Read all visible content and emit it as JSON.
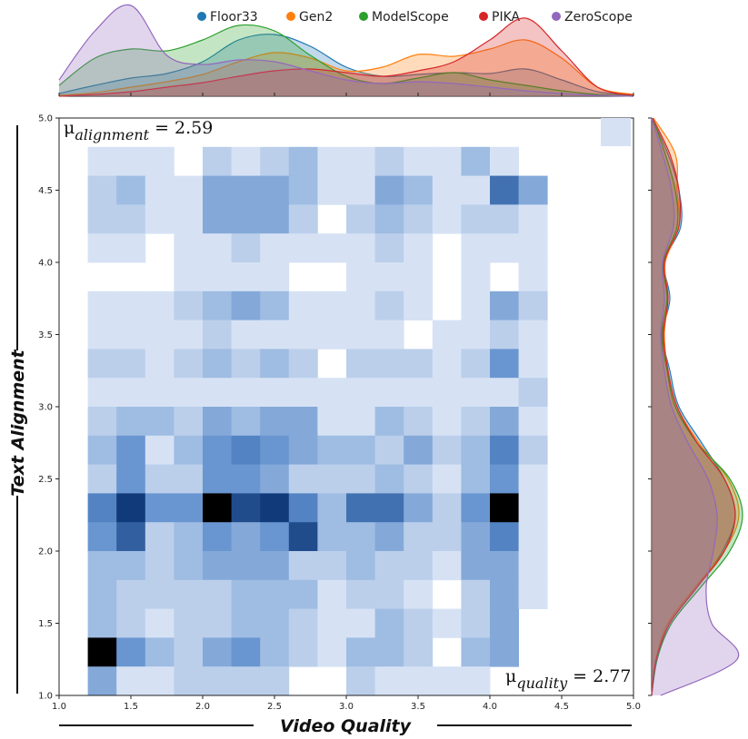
{
  "chart_data": {
    "type": "heatmap",
    "title": "",
    "xlabel": "Video Quality",
    "ylabel": "Text Alignment",
    "xlim": [
      1.0,
      5.0
    ],
    "ylim": [
      1.0,
      5.0
    ],
    "x_ticks": [
      "1.0",
      "1.5",
      "2.0",
      "2.5",
      "3.0",
      "3.5",
      "4.0",
      "4.5",
      "5.0"
    ],
    "y_ticks": [
      "1.0",
      "1.5",
      "2.0",
      "2.5",
      "3.0",
      "3.5",
      "4.0",
      "4.5",
      "5.0"
    ],
    "bin_size": 0.2,
    "x_bin_start": 1.2,
    "y_bin_start": 1.0,
    "color_low": "#d6e2f4",
    "color_mid": "#5b8ccc",
    "color_high": "#002868",
    "color_peak": "#000000",
    "counts_top_to_bottom": [
      [
        1,
        1,
        1,
        0,
        2,
        1,
        2,
        3,
        1,
        1,
        2,
        1,
        1,
        3,
        1,
        0
      ],
      [
        2,
        3,
        1,
        1,
        4,
        4,
        4,
        3,
        1,
        1,
        4,
        3,
        1,
        1,
        7,
        4
      ],
      [
        2,
        2,
        1,
        1,
        4,
        4,
        4,
        2,
        0,
        2,
        3,
        2,
        1,
        2,
        2,
        1
      ],
      [
        1,
        1,
        0,
        1,
        1,
        2,
        1,
        1,
        1,
        1,
        2,
        1,
        0,
        1,
        1,
        1
      ],
      [
        0,
        0,
        0,
        1,
        1,
        1,
        1,
        0,
        0,
        1,
        1,
        1,
        0,
        1,
        0,
        1
      ],
      [
        1,
        1,
        1,
        2,
        3,
        4,
        3,
        1,
        1,
        1,
        2,
        1,
        0,
        1,
        4,
        2
      ],
      [
        1,
        1,
        1,
        1,
        2,
        1,
        1,
        1,
        1,
        1,
        1,
        0,
        1,
        1,
        2,
        1
      ],
      [
        2,
        2,
        1,
        2,
        3,
        2,
        3,
        2,
        0,
        2,
        2,
        2,
        1,
        2,
        5,
        1
      ],
      [
        1,
        1,
        1,
        1,
        1,
        1,
        1,
        1,
        1,
        1,
        1,
        1,
        1,
        1,
        1,
        2
      ],
      [
        2,
        3,
        3,
        2,
        4,
        3,
        4,
        4,
        1,
        1,
        3,
        2,
        1,
        2,
        4,
        1
      ],
      [
        3,
        5,
        1,
        3,
        5,
        6,
        5,
        4,
        3,
        3,
        2,
        4,
        2,
        3,
        6,
        2
      ],
      [
        2,
        5,
        2,
        2,
        5,
        5,
        4,
        2,
        2,
        2,
        3,
        2,
        1,
        3,
        5,
        1
      ],
      [
        6,
        10,
        5,
        5,
        12,
        9,
        10,
        6,
        3,
        7,
        7,
        4,
        2,
        5,
        12,
        1
      ],
      [
        5,
        8,
        2,
        3,
        5,
        4,
        5,
        9,
        3,
        3,
        4,
        2,
        2,
        4,
        6,
        1
      ],
      [
        3,
        3,
        2,
        3,
        4,
        4,
        4,
        2,
        2,
        3,
        2,
        2,
        1,
        4,
        4,
        1
      ],
      [
        3,
        2,
        2,
        2,
        2,
        3,
        3,
        3,
        1,
        2,
        2,
        1,
        0,
        2,
        4,
        1
      ],
      [
        3,
        2,
        1,
        2,
        2,
        3,
        3,
        2,
        1,
        1,
        3,
        2,
        1,
        2,
        4,
        0
      ],
      [
        12,
        5,
        3,
        2,
        4,
        5,
        3,
        2,
        1,
        3,
        3,
        2,
        0,
        3,
        4,
        0
      ],
      [
        4,
        1,
        1,
        2,
        2,
        2,
        2,
        0,
        0,
        2,
        1,
        1,
        1,
        1,
        0,
        0
      ]
    ],
    "mu_alignment": {
      "symbol": "μ",
      "subscript": "alignment",
      "value": "= 2.59"
    },
    "mu_quality": {
      "symbol": "μ",
      "subscript": "quality",
      "value": "= 2.77"
    },
    "legend": [
      {
        "name": "Floor33",
        "color": "#1f77b4"
      },
      {
        "name": "Gen2",
        "color": "#ff7f0e"
      },
      {
        "name": "ModelScope",
        "color": "#2ca02c"
      },
      {
        "name": "PIKA",
        "color": "#d62728"
      },
      {
        "name": "ZeroScope",
        "color": "#9467bd"
      }
    ],
    "legend_position": "top-right",
    "marginal_quality_density": [
      {
        "name": "Floor33",
        "x": [
          1.0,
          1.25,
          1.5,
          1.75,
          2.0,
          2.25,
          2.5,
          2.75,
          3.0,
          3.25,
          3.5,
          3.75,
          4.0,
          4.25,
          4.5,
          4.75,
          5.0
        ],
        "y": [
          0.03,
          0.12,
          0.2,
          0.25,
          0.38,
          0.62,
          0.68,
          0.55,
          0.32,
          0.22,
          0.24,
          0.26,
          0.25,
          0.3,
          0.18,
          0.05,
          0.01
        ]
      },
      {
        "name": "Gen2",
        "x": [
          1.0,
          1.25,
          1.5,
          1.75,
          2.0,
          2.25,
          2.5,
          2.75,
          3.0,
          3.25,
          3.5,
          3.75,
          4.0,
          4.25,
          4.5,
          4.75,
          5.0
        ],
        "y": [
          0.01,
          0.04,
          0.1,
          0.16,
          0.24,
          0.38,
          0.48,
          0.42,
          0.28,
          0.32,
          0.46,
          0.44,
          0.52,
          0.62,
          0.42,
          0.1,
          0.02
        ]
      },
      {
        "name": "ModelScope",
        "x": [
          1.0,
          1.25,
          1.5,
          1.75,
          2.0,
          2.25,
          2.5,
          2.75,
          3.0,
          3.25,
          3.5,
          3.75,
          4.0,
          4.25,
          4.5,
          4.75,
          5.0
        ],
        "y": [
          0.12,
          0.42,
          0.52,
          0.5,
          0.62,
          0.78,
          0.72,
          0.45,
          0.22,
          0.14,
          0.2,
          0.26,
          0.18,
          0.12,
          0.06,
          0.02,
          0.0
        ]
      },
      {
        "name": "PIKA",
        "x": [
          1.0,
          1.25,
          1.5,
          1.75,
          2.0,
          2.25,
          2.5,
          2.75,
          3.0,
          3.25,
          3.5,
          3.75,
          4.0,
          4.25,
          4.5,
          4.75,
          5.0
        ],
        "y": [
          0.0,
          0.02,
          0.05,
          0.1,
          0.15,
          0.22,
          0.28,
          0.3,
          0.26,
          0.22,
          0.28,
          0.38,
          0.62,
          0.86,
          0.5,
          0.1,
          0.01
        ]
      },
      {
        "name": "ZeroScope",
        "x": [
          1.0,
          1.25,
          1.5,
          1.75,
          2.0,
          2.25,
          2.5,
          2.75,
          3.0,
          3.25,
          3.5,
          3.75,
          4.0,
          4.25,
          4.5,
          4.75,
          5.0
        ],
        "y": [
          0.18,
          0.72,
          1.0,
          0.45,
          0.35,
          0.4,
          0.38,
          0.28,
          0.18,
          0.14,
          0.16,
          0.14,
          0.1,
          0.06,
          0.03,
          0.01,
          0.0
        ]
      }
    ],
    "marginal_alignment_density": [
      {
        "name": "Floor33",
        "y": [
          5.0,
          4.75,
          4.5,
          4.25,
          4.0,
          3.75,
          3.5,
          3.25,
          3.0,
          2.75,
          2.5,
          2.25,
          2.0,
          1.75,
          1.5,
          1.25,
          1.0
        ],
        "x": [
          0.0,
          0.18,
          0.3,
          0.32,
          0.14,
          0.2,
          0.12,
          0.2,
          0.3,
          0.55,
          0.8,
          0.92,
          0.78,
          0.5,
          0.2,
          0.06,
          0.0
        ]
      },
      {
        "name": "Gen2",
        "y": [
          5.0,
          4.75,
          4.5,
          4.25,
          4.0,
          3.75,
          3.5,
          3.25,
          3.0,
          2.75,
          2.5,
          2.25,
          2.0,
          1.75,
          1.5,
          1.25,
          1.0
        ],
        "x": [
          0.02,
          0.26,
          0.28,
          0.3,
          0.15,
          0.18,
          0.14,
          0.18,
          0.28,
          0.52,
          0.84,
          0.96,
          0.8,
          0.48,
          0.18,
          0.05,
          0.0
        ]
      },
      {
        "name": "ModelScope",
        "y": [
          5.0,
          4.75,
          4.5,
          4.25,
          4.0,
          3.75,
          3.5,
          3.25,
          3.0,
          2.75,
          2.5,
          2.25,
          2.0,
          1.75,
          1.5,
          1.25,
          1.0
        ],
        "x": [
          0.01,
          0.15,
          0.26,
          0.28,
          0.13,
          0.17,
          0.11,
          0.17,
          0.26,
          0.5,
          0.86,
          1.0,
          0.86,
          0.54,
          0.22,
          0.06,
          0.0
        ]
      },
      {
        "name": "PIKA",
        "y": [
          5.0,
          4.75,
          4.5,
          4.25,
          4.0,
          3.75,
          3.5,
          3.25,
          3.0,
          2.75,
          2.5,
          2.25,
          2.0,
          1.75,
          1.5,
          1.25,
          1.0
        ],
        "x": [
          0.01,
          0.2,
          0.3,
          0.3,
          0.14,
          0.18,
          0.13,
          0.18,
          0.28,
          0.5,
          0.8,
          0.92,
          0.8,
          0.5,
          0.2,
          0.05,
          0.0
        ]
      },
      {
        "name": "ZeroScope",
        "y": [
          5.0,
          4.75,
          4.5,
          4.25,
          4.0,
          3.75,
          3.5,
          3.25,
          3.0,
          2.75,
          2.5,
          2.25,
          2.0,
          1.75,
          1.5,
          1.25,
          1.0
        ],
        "x": [
          0.0,
          0.12,
          0.22,
          0.24,
          0.12,
          0.14,
          0.1,
          0.14,
          0.22,
          0.4,
          0.62,
          0.72,
          0.68,
          0.6,
          0.66,
          0.94,
          0.1
        ]
      }
    ]
  }
}
